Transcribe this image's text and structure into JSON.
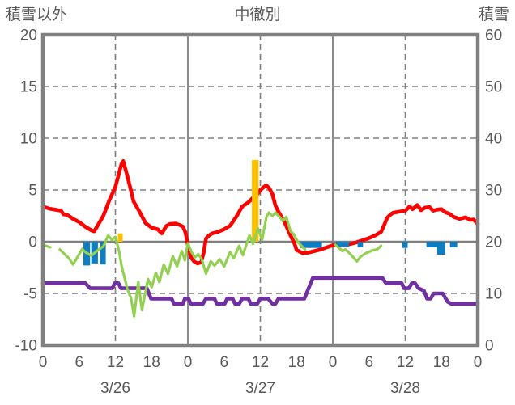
{
  "header": {
    "left_label": "積雪以外",
    "title": "中徹別",
    "right_label": "積雪"
  },
  "colors": {
    "red_line": "#FF0000",
    "green_line": "#92D050",
    "purple_line": "#7030A0",
    "blue_bars": "#0F7DC2",
    "orange_bars": "#FFC000",
    "grid": "#7F7F7F",
    "border": "#808080",
    "text": "#595959",
    "background": "#FFFFFF"
  },
  "chart_data": {
    "type": "line",
    "title": "中徹別",
    "left_axis": {
      "label": "積雪以外",
      "min": -10,
      "max": 20,
      "ticks": [
        20,
        15,
        10,
        5,
        0,
        -5,
        -10
      ]
    },
    "right_axis": {
      "label": "積雪",
      "min": 0,
      "max": 60,
      "ticks": [
        60,
        50,
        40,
        30,
        20,
        10,
        0
      ]
    },
    "x_axis": {
      "hours_total": 72,
      "tick_hours": [
        0,
        6,
        12,
        18,
        24,
        30,
        36,
        42,
        48,
        54,
        60,
        66,
        72
      ],
      "tick_labels": [
        "0",
        "6",
        "12",
        "18",
        "0",
        "6",
        "12",
        "18",
        "0",
        "6",
        "12",
        "18",
        "0"
      ],
      "day_labels": [
        {
          "hour": 12,
          "label": "3/26"
        },
        {
          "hour": 36,
          "label": "3/27"
        },
        {
          "hour": 60,
          "label": "3/28"
        }
      ],
      "dashed_gridline_hours": [
        12,
        36,
        60
      ],
      "solid_gridline_hours": [
        24,
        48
      ]
    },
    "horizontal_gridlines": {
      "dashed": [
        15,
        10,
        5,
        -5
      ],
      "solid": [
        0
      ]
    },
    "series": [
      {
        "name": "red-temperature-line",
        "type": "line",
        "axis": "left",
        "color_key": "red_line",
        "width": 4.6,
        "segments": [
          [
            [
              0,
              3.4
            ],
            [
              1,
              3.2
            ],
            [
              2,
              3.1
            ],
            [
              3,
              3.0
            ],
            [
              3.4,
              2.65
            ],
            [
              4,
              2.6
            ],
            [
              5,
              2.2
            ],
            [
              6,
              1.9
            ],
            [
              7,
              1.45
            ],
            [
              8,
              1.1
            ],
            [
              8.5,
              1.0
            ],
            [
              9,
              1.5
            ],
            [
              10,
              2.5
            ],
            [
              11,
              4.0
            ],
            [
              12,
              5.3
            ],
            [
              13,
              7.5
            ],
            [
              13.3,
              7.8
            ],
            [
              14,
              6.3
            ],
            [
              14.6,
              4.9
            ],
            [
              15,
              3.9
            ],
            [
              16,
              2.9
            ],
            [
              17,
              1.8
            ],
            [
              18,
              1.35
            ],
            [
              19,
              1.2
            ],
            [
              19.7,
              0.8
            ],
            [
              20.4,
              1.5
            ],
            [
              21,
              1.7
            ],
            [
              22,
              1.75
            ],
            [
              22.7,
              1.6
            ],
            [
              23.2,
              1.45
            ],
            [
              23.6,
              0.9
            ],
            [
              24,
              -0.3
            ],
            [
              24.5,
              -1.5
            ],
            [
              25,
              -1.9
            ],
            [
              25.6,
              -2.1
            ],
            [
              26.2,
              -2.0
            ],
            [
              26.6,
              -1.1
            ],
            [
              27,
              0.3
            ],
            [
              27.5,
              0.6
            ],
            [
              28,
              0.8
            ],
            [
              29,
              0.95
            ],
            [
              30,
              1.2
            ],
            [
              31,
              1.55
            ],
            [
              32,
              2.4
            ],
            [
              33,
              3.4
            ],
            [
              34,
              3.8
            ],
            [
              34.7,
              4.2
            ],
            [
              35.4,
              4.5
            ],
            [
              36,
              5.0
            ],
            [
              36.6,
              5.3
            ],
            [
              37,
              5.45
            ],
            [
              37.5,
              5.15
            ],
            [
              38,
              4.6
            ],
            [
              38.5,
              3.5
            ],
            [
              39,
              2.9
            ],
            [
              40,
              1.9
            ],
            [
              41,
              0.6
            ],
            [
              41.6,
              -0.1
            ],
            [
              42,
              -0.8
            ],
            [
              43,
              -1.1
            ],
            [
              44,
              -1.05
            ],
            [
              45,
              -0.9
            ],
            [
              46,
              -0.75
            ],
            [
              47,
              -0.55
            ],
            [
              48,
              -0.35
            ],
            [
              49,
              -0.25
            ],
            [
              50,
              -0.35
            ],
            [
              51,
              -0.2
            ],
            [
              52,
              -0.05
            ],
            [
              53,
              0.15
            ],
            [
              54,
              0.35
            ],
            [
              55,
              0.6
            ],
            [
              56,
              0.95
            ],
            [
              56.5,
              1.6
            ],
            [
              57,
              2.3
            ],
            [
              57.5,
              2.6
            ],
            [
              58,
              2.8
            ],
            [
              59,
              2.9
            ],
            [
              60,
              3.0
            ],
            [
              60.7,
              3.4
            ],
            [
              61.2,
              3.15
            ],
            [
              62,
              3.55
            ],
            [
              62.6,
              3.05
            ],
            [
              63.3,
              3.3
            ],
            [
              64,
              3.35
            ],
            [
              64.6,
              3.0
            ],
            [
              65.3,
              3.1
            ],
            [
              66,
              3.15
            ],
            [
              66.6,
              2.85
            ],
            [
              67.3,
              2.7
            ],
            [
              68,
              2.4
            ],
            [
              69,
              2.2
            ],
            [
              70,
              2.35
            ],
            [
              70.7,
              2.1
            ],
            [
              71.3,
              2.15
            ],
            [
              72,
              1.7
            ]
          ]
        ]
      },
      {
        "name": "blue-bars",
        "type": "bar",
        "axis": "left",
        "color_key": "blue_bars",
        "bars": [
          {
            "from": 6.7,
            "to": 7.8,
            "value": -2.3
          },
          {
            "from": 8.0,
            "to": 9.1,
            "value": -2.1
          },
          {
            "from": 9.5,
            "to": 10.4,
            "value": -2.2
          },
          {
            "from": 42.6,
            "to": 46.2,
            "value": -0.6
          },
          {
            "from": 48.5,
            "to": 50.7,
            "value": -0.5
          },
          {
            "from": 52.1,
            "to": 53.0,
            "value": -0.55
          },
          {
            "from": 59.5,
            "to": 60.4,
            "value": -0.6
          },
          {
            "from": 63.5,
            "to": 65.3,
            "value": -0.55
          },
          {
            "from": 65.3,
            "to": 66.6,
            "value": -1.25
          },
          {
            "from": 67.4,
            "to": 68.6,
            "value": -0.55
          }
        ]
      },
      {
        "name": "orange-bars",
        "type": "bar",
        "axis": "left",
        "color_key": "orange_bars",
        "bars": [
          {
            "from": 12.4,
            "to": 13.2,
            "value": 0.8
          },
          {
            "from": 34.6,
            "to": 35.7,
            "value": 7.9
          }
        ]
      },
      {
        "name": "purple-snow-depth-line",
        "type": "line",
        "axis": "right",
        "color_key": "purple_line",
        "width": 4.6,
        "segments": [
          [
            [
              0,
              12
            ],
            [
              7,
              12
            ],
            [
              7.8,
              11
            ],
            [
              11.5,
              11
            ],
            [
              11.9,
              12
            ],
            [
              12.5,
              12
            ],
            [
              12.9,
              11
            ],
            [
              17.2,
              11
            ],
            [
              17.9,
              9
            ],
            [
              21.3,
              9
            ],
            [
              21.7,
              8
            ],
            [
              23.2,
              8
            ],
            [
              23.5,
              9
            ],
            [
              24.1,
              9
            ],
            [
              24.5,
              8
            ],
            [
              26.5,
              8
            ],
            [
              27,
              9
            ],
            [
              28.4,
              9
            ],
            [
              28.8,
              8
            ],
            [
              30.1,
              8
            ],
            [
              30.5,
              9
            ],
            [
              31.4,
              9
            ],
            [
              31.8,
              8
            ],
            [
              32.5,
              8
            ],
            [
              33,
              9
            ],
            [
              34,
              9
            ],
            [
              34.4,
              8
            ],
            [
              35.5,
              8
            ],
            [
              36,
              9
            ],
            [
              37.3,
              9
            ],
            [
              38,
              8
            ],
            [
              38.5,
              8
            ],
            [
              39,
              9
            ],
            [
              43.3,
              9
            ],
            [
              44.7,
              13
            ],
            [
              56.2,
              13
            ],
            [
              56.8,
              12
            ],
            [
              59.4,
              12
            ],
            [
              59.8,
              11
            ],
            [
              60.6,
              11
            ],
            [
              61.1,
              12
            ],
            [
              61.6,
              12
            ],
            [
              62.2,
              11
            ],
            [
              63.1,
              10.5
            ],
            [
              63.6,
              9
            ],
            [
              64.2,
              9
            ],
            [
              64.7,
              10
            ],
            [
              66.2,
              10
            ],
            [
              67,
              8.4
            ],
            [
              67.6,
              8
            ],
            [
              72,
              8
            ]
          ]
        ]
      },
      {
        "name": "green-line",
        "type": "line",
        "axis": "left",
        "color_key": "green_line",
        "width": 3.2,
        "segments": [
          [
            [
              0,
              -0.3
            ],
            [
              1.2,
              -0.55
            ]
          ],
          [
            [
              2.8,
              -0.75
            ],
            [
              4.3,
              -1.6
            ],
            [
              5,
              -2.2
            ],
            [
              6,
              -1.2
            ],
            [
              6.5,
              -0.7
            ],
            [
              7,
              -1.0
            ],
            [
              8,
              -1.35
            ],
            [
              9,
              -0.85
            ],
            [
              10,
              -0.45
            ],
            [
              10.8,
              0.6
            ],
            [
              11.4,
              0.2
            ],
            [
              12,
              0.45
            ],
            [
              12.6,
              -0.9
            ],
            [
              13,
              -2.3
            ],
            [
              14,
              -4.6
            ],
            [
              14.6,
              -5.5
            ],
            [
              15.1,
              -7.2
            ],
            [
              15.8,
              -3.9
            ],
            [
              16.4,
              -6.6
            ],
            [
              17.4,
              -3.6
            ],
            [
              18,
              -4.4
            ],
            [
              18.7,
              -3.0
            ],
            [
              19.3,
              -3.9
            ],
            [
              20,
              -2.2
            ],
            [
              20.7,
              -3.1
            ],
            [
              21.5,
              -1.4
            ],
            [
              22.2,
              -2.4
            ],
            [
              23,
              -0.9
            ],
            [
              23.5,
              -1.8
            ],
            [
              24,
              -0.15
            ],
            [
              24.6,
              -1.0
            ],
            [
              25.2,
              -1.5
            ],
            [
              25.7,
              -1.2
            ],
            [
              26.3,
              -1.7
            ],
            [
              27,
              -3.1
            ],
            [
              27.8,
              -1.9
            ],
            [
              28.4,
              -2.3
            ],
            [
              29.3,
              -1.7
            ],
            [
              30,
              -2.4
            ],
            [
              31,
              -1.0
            ],
            [
              31.6,
              -1.6
            ],
            [
              32.5,
              -0.4
            ],
            [
              33.1,
              -1.3
            ],
            [
              34.2,
              0.6
            ],
            [
              34.8,
              -0.2
            ],
            [
              35.6,
              1.3
            ],
            [
              36.3,
              0.2
            ],
            [
              37,
              2.4
            ],
            [
              37.4,
              2.8
            ],
            [
              38,
              2.5
            ],
            [
              38.5,
              2.8
            ],
            [
              39.2,
              2.4
            ],
            [
              39.7,
              2.0
            ],
            [
              40.3,
              2.4
            ],
            [
              41,
              1.0
            ],
            [
              41.5,
              0.75
            ],
            [
              42.3,
              -0.1
            ],
            [
              43.4,
              -0.75
            ]
          ],
          [
            [
              48.4,
              -0.3
            ],
            [
              49,
              -0.6
            ],
            [
              49.6,
              -0.9
            ],
            [
              50.1,
              -0.75
            ],
            [
              51,
              -1.25
            ],
            [
              52,
              -1.9
            ],
            [
              52.6,
              -1.45
            ],
            [
              53.5,
              -1.1
            ],
            [
              54.5,
              -0.85
            ],
            [
              55.3,
              -0.75
            ],
            [
              56,
              -0.4
            ]
          ]
        ]
      }
    ]
  }
}
